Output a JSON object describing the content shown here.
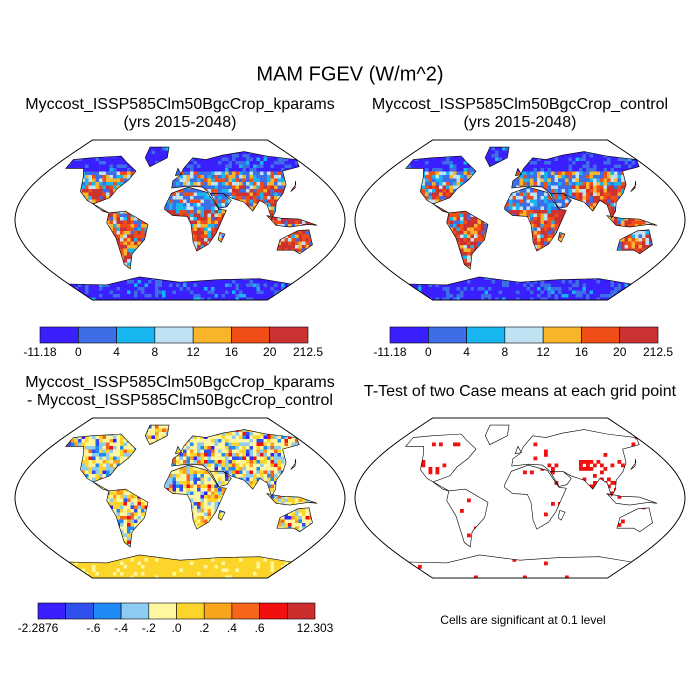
{
  "title": "MAM FGEV (W/m^2)",
  "panels": [
    {
      "title": [
        "Myccost_ISSP585Clm50BgcCrop_kparams",
        "(yrs 2015-2048)"
      ],
      "colorbar": {
        "labels": [
          "-11.18",
          "0",
          "4",
          "8",
          "12",
          "16",
          "20",
          "212.5"
        ]
      }
    },
    {
      "title": [
        "Myccost_ISSP585Clm50BgcCrop_control",
        "(yrs 2015-2048)"
      ],
      "colorbar": {
        "labels": [
          "-11.18",
          "0",
          "4",
          "8",
          "12",
          "16",
          "20",
          "212.5"
        ]
      }
    },
    {
      "title": [
        "Myccost_ISSP585Clm50BgcCrop_kparams",
        "- Myccost_ISSP585Clm50BgcCrop_control"
      ],
      "colorbar": {
        "labels": [
          "-2.2876",
          null,
          "-.6",
          "-.4",
          "-.2",
          ".0",
          ".2",
          ".4",
          ".6",
          null,
          "12.303"
        ]
      }
    },
    {
      "title": [
        "T-Test of two Case means at each grid point"
      ],
      "note": "Cells are significant at 0.1 level"
    }
  ]
}
